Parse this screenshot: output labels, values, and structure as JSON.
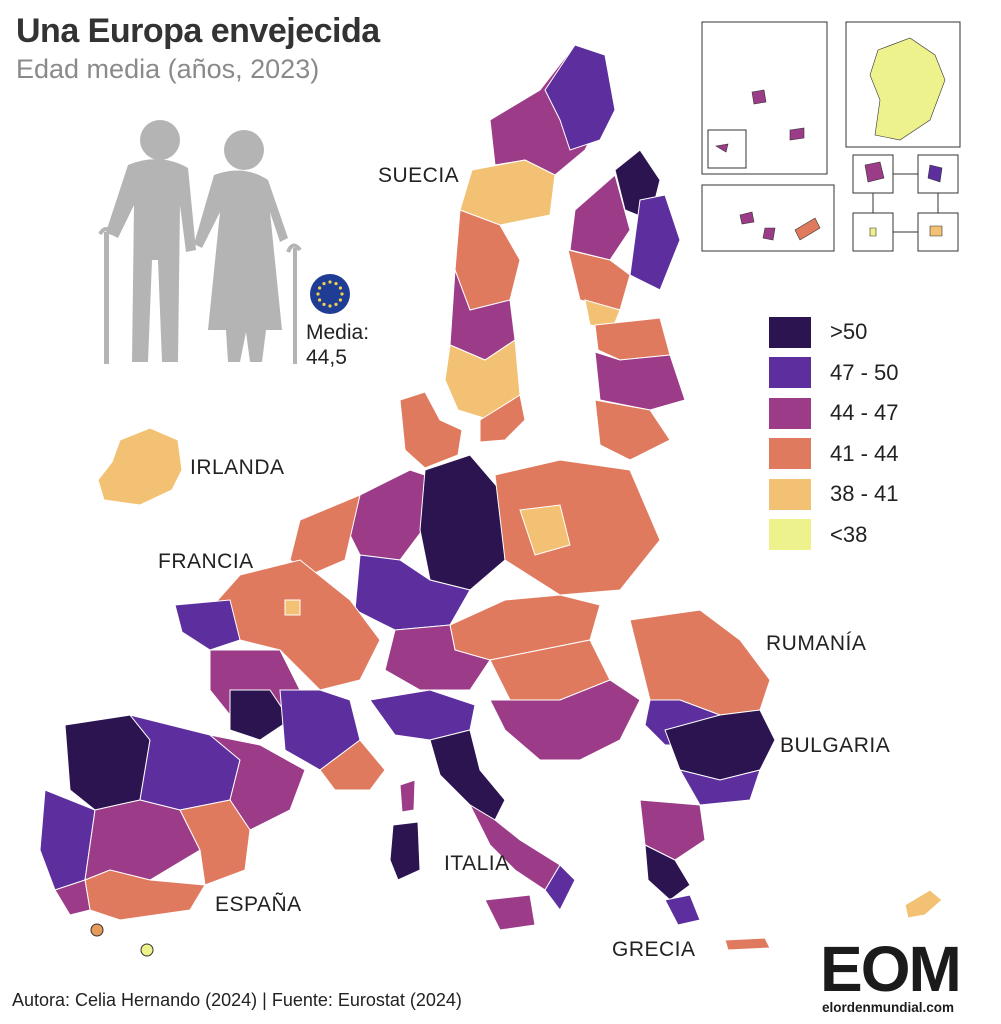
{
  "title": "Una Europa envejecida",
  "subtitle": "Edad media (años, 2023)",
  "eu_average": {
    "label": "Media:",
    "value": "44,5"
  },
  "legend": [
    {
      "label": ">50",
      "color": "#2b1450"
    },
    {
      "label": "47 - 50",
      "color": "#5d2f9e"
    },
    {
      "label": "44 - 47",
      "color": "#9c3b87"
    },
    {
      "label": "41 - 44",
      "color": "#e07a5e"
    },
    {
      "label": "38 - 41",
      "color": "#f3c173"
    },
    {
      "label": "<38",
      "color": "#eef28c"
    }
  ],
  "country_labels": {
    "suecia": "SUECIA",
    "irlanda": "IRLANDA",
    "francia": "FRANCIA",
    "rumania": "RUMANÍA",
    "bulgaria": "BULGARIA",
    "italia": "ITALIA",
    "espana": "ESPAÑA",
    "grecia": "GRECIA"
  },
  "credits": "Autora: Celia Hernando (2024) | Fuente: Eurostat (2024)",
  "logo": {
    "letters": "EOM",
    "url": "elordenmundial.com"
  },
  "icons": {
    "eu_flag": "eu-flag-icon",
    "elderly_couple": "elderly-couple-silhouette"
  }
}
